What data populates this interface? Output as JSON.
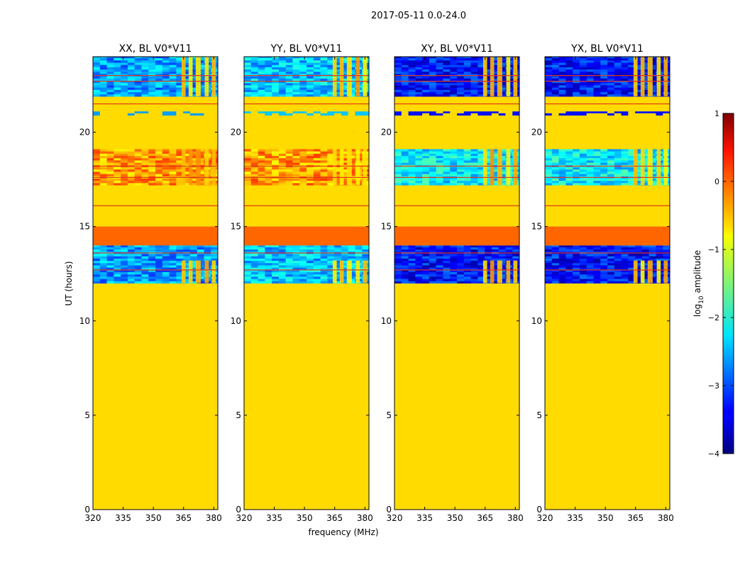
{
  "figure": {
    "suptitle": "2017-05-11 0.0-24.0",
    "xlabel": "frequency (MHz)",
    "ylabel": "UT (hours)",
    "colorbar_label_prefix": "log",
    "colorbar_label_sub": "10",
    "colorbar_label_suffix": " amplitude"
  },
  "colors": {
    "nodata_green": "#9cff5c",
    "band_orange": "#ff6600",
    "rfi_red": "#e03a1a"
  },
  "chart_data": {
    "type": "heatmap",
    "x_range": [
      320,
      382
    ],
    "y_range": [
      0,
      24
    ],
    "x_ticks": [
      320,
      335,
      350,
      365,
      380
    ],
    "y_ticks": [
      0,
      5,
      10,
      15,
      20
    ],
    "colorbar": {
      "range": [
        -4,
        1
      ],
      "ticks": [
        1,
        0,
        -1,
        -2,
        -3,
        -4
      ],
      "tick_labels": [
        "1",
        "0",
        "−1",
        "−2",
        "−3",
        "−4"
      ],
      "colormap": "jet"
    },
    "panels": [
      {
        "title": "XX, BL V0*V11",
        "pol": "XX",
        "noise_level": -2.6,
        "mid_level": 0.0
      },
      {
        "title": "YY, BL V0*V11",
        "pol": "YY",
        "noise_level": -2.4,
        "mid_level": 0.0
      },
      {
        "title": "XY, BL V0*V11",
        "pol": "XY",
        "noise_level": -3.3,
        "mid_level": -1.8
      },
      {
        "title": "YX, BL V0*V11",
        "pol": "YX",
        "noise_level": -3.3,
        "mid_level": -1.8
      }
    ],
    "data_gap_level": -0.7,
    "constant_band": {
      "ut_range": [
        14.0,
        15.0
      ],
      "level": 0.2
    },
    "bright_channels_mhz": [
      [
        364,
        366
      ],
      [
        367.5,
        369.5
      ],
      [
        371,
        373.5
      ],
      [
        375.5,
        377.5
      ],
      [
        379,
        381
      ]
    ],
    "rfi_ut_hours": [
      23.0,
      22.7,
      21.5,
      18.2,
      17.6,
      16.1,
      13.6,
      12.7
    ]
  }
}
